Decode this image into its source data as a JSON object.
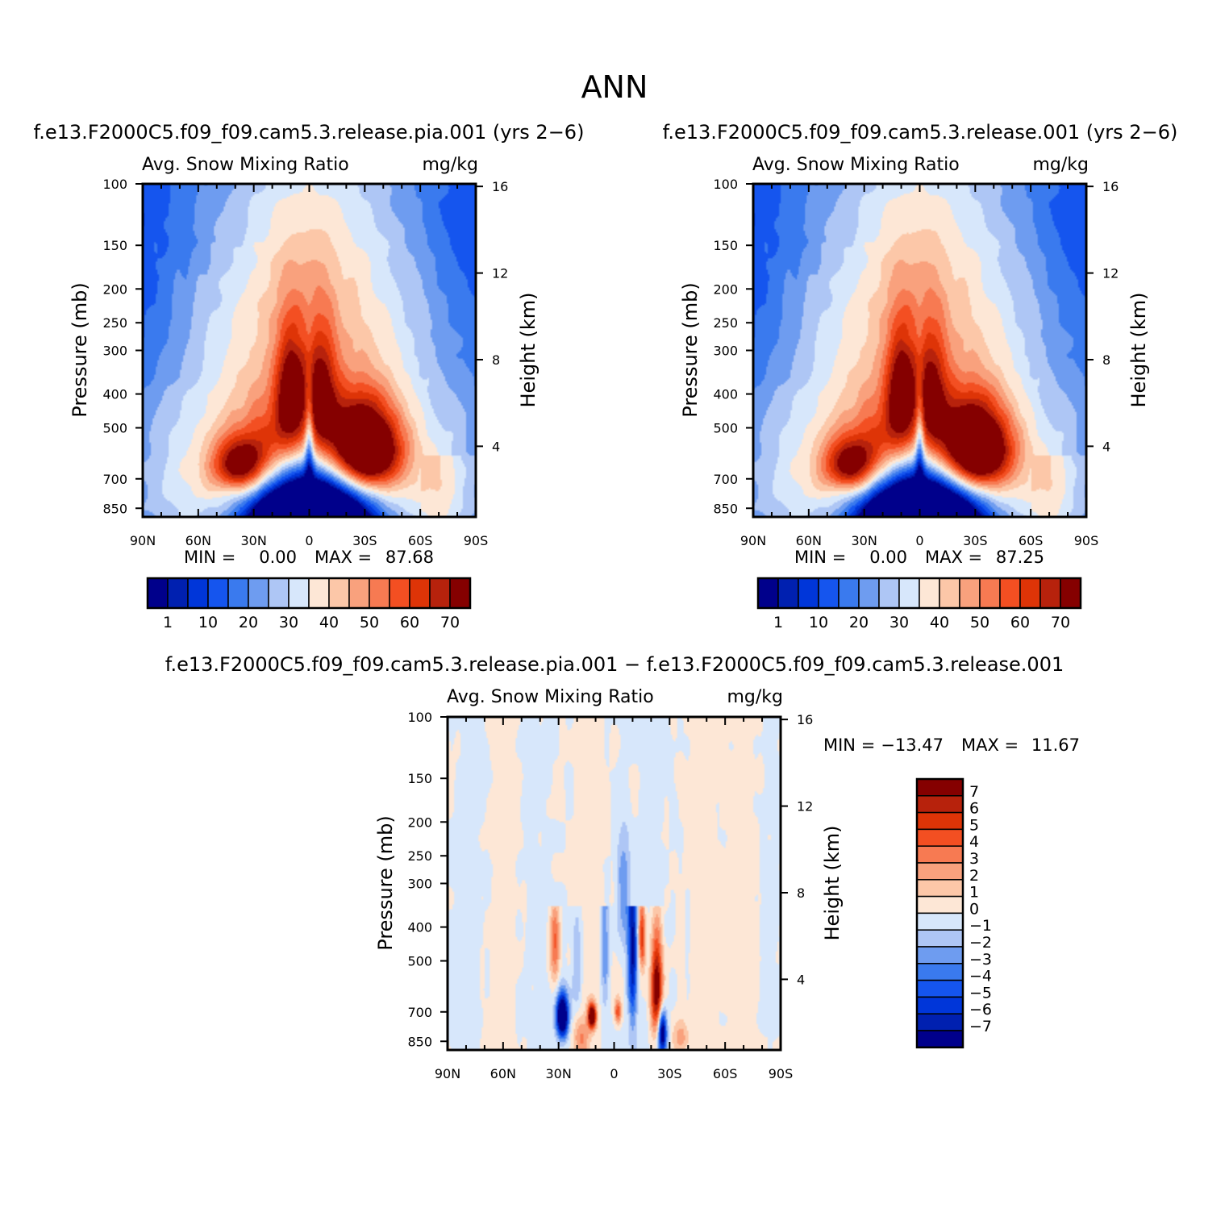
{
  "figure": {
    "title": "ANN"
  },
  "palettes": {
    "abs": [
      "#00008b",
      "#0020b0",
      "#0036d9",
      "#1555ee",
      "#3a7aee",
      "#6e9cf0",
      "#aec6f5",
      "#d7e7fb",
      "#fde7d6",
      "#fcc7a8",
      "#f9a17d",
      "#f77a52",
      "#f34f22",
      "#de3407",
      "#b7220c",
      "#850000"
    ],
    "diff": [
      "#00008b",
      "#0020b0",
      "#0036d9",
      "#1555ee",
      "#3a7aee",
      "#6e9cf0",
      "#aec6f5",
      "#d7e7fb",
      "#fde7d6",
      "#fcc7a8",
      "#f9a17d",
      "#f77a52",
      "#f34f22",
      "#de3407",
      "#b7220c",
      "#850000"
    ]
  },
  "chart_data": [
    {
      "type": "heatmap",
      "title": "f.e13.F2000C5.f09_f09.cam5.3.release.pia.001 (yrs 2−6)",
      "left_label": "Avg. Snow Mixing Ratio",
      "right_label": "mg/kg",
      "xlabel": "",
      "ylabel": "Pressure (mb)",
      "ylabel_right": "Height (km)",
      "x_ticks": [
        "90N",
        "60N",
        "30N",
        "0",
        "30S",
        "60S",
        "90S"
      ],
      "y_ticks": [
        100,
        150,
        200,
        250,
        300,
        400,
        500,
        700,
        850
      ],
      "y_ticks_right": [
        16,
        12,
        8,
        4
      ],
      "min_text": "MIN =",
      "min_value": "0.00",
      "max_text": "MAX =",
      "max_value": "87.68",
      "colorbar_labels": [
        "1",
        "10",
        "20",
        "30",
        "40",
        "50",
        "60",
        "70"
      ],
      "ylim": [
        1000,
        100
      ],
      "xlim": [
        90,
        -90
      ],
      "field": {
        "base_gaussian": [
          {
            "lat": 0,
            "p": 700,
            "sl": 68,
            "sp": 430,
            "amp": 60
          }
        ],
        "blobs": [
          {
            "lat": -32,
            "p": 580,
            "sl": 12,
            "sp": 110,
            "amp": 55
          },
          {
            "lat": 38,
            "p": 640,
            "sl": 10,
            "sp": 80,
            "amp": 40
          },
          {
            "lat": 10,
            "p": 420,
            "sl": 6,
            "sp": 120,
            "amp": 40
          },
          {
            "lat": -6,
            "p": 420,
            "sl": 6,
            "sp": 120,
            "amp": 35
          },
          {
            "lat": -20,
            "p": 540,
            "sl": 12,
            "sp": 120,
            "amp": 20
          },
          {
            "lat": 24,
            "p": 560,
            "sl": 10,
            "sp": 120,
            "amp": 18
          }
        ],
        "holes": [
          {
            "lat": 0,
            "p": 1000,
            "sl": 25,
            "sp": 260,
            "amp": 130
          },
          {
            "lat": 0,
            "p": 540,
            "sl": 1.6,
            "sp": 130,
            "amp": 25
          }
        ],
        "upper_band": {
          "amp": 14,
          "p_center": 180,
          "lat_width": 38
        },
        "max": 87.68
      }
    },
    {
      "type": "heatmap",
      "title": "f.e13.F2000C5.f09_f09.cam5.3.release.001 (yrs 2−6)",
      "left_label": "Avg. Snow Mixing Ratio",
      "right_label": "mg/kg",
      "xlabel": "",
      "ylabel": "Pressure (mb)",
      "ylabel_right": "Height (km)",
      "x_ticks": [
        "90N",
        "60N",
        "30N",
        "0",
        "30S",
        "60S",
        "90S"
      ],
      "y_ticks": [
        100,
        150,
        200,
        250,
        300,
        400,
        500,
        700,
        850
      ],
      "y_ticks_right": [
        16,
        12,
        8,
        4
      ],
      "min_text": "MIN =",
      "min_value": "0.00",
      "max_text": "MAX =",
      "max_value": "87.25",
      "colorbar_labels": [
        "1",
        "10",
        "20",
        "30",
        "40",
        "50",
        "60",
        "70"
      ],
      "ylim": [
        1000,
        100
      ],
      "xlim": [
        90,
        -90
      ],
      "field": {
        "base_gaussian": [
          {
            "lat": 0,
            "p": 700,
            "sl": 68,
            "sp": 430,
            "amp": 60
          }
        ],
        "blobs": [
          {
            "lat": -32,
            "p": 580,
            "sl": 12,
            "sp": 110,
            "amp": 55
          },
          {
            "lat": 38,
            "p": 640,
            "sl": 10,
            "sp": 80,
            "amp": 38
          },
          {
            "lat": 10,
            "p": 420,
            "sl": 6,
            "sp": 120,
            "amp": 40
          },
          {
            "lat": -6,
            "p": 420,
            "sl": 6,
            "sp": 120,
            "amp": 33
          },
          {
            "lat": -20,
            "p": 540,
            "sl": 12,
            "sp": 120,
            "amp": 20
          },
          {
            "lat": 24,
            "p": 560,
            "sl": 10,
            "sp": 120,
            "amp": 18
          }
        ],
        "holes": [
          {
            "lat": 0,
            "p": 1000,
            "sl": 25,
            "sp": 260,
            "amp": 130
          },
          {
            "lat": 0,
            "p": 540,
            "sl": 1.6,
            "sp": 130,
            "amp": 25
          }
        ],
        "upper_band": {
          "amp": 14,
          "p_center": 180,
          "lat_width": 38
        },
        "max": 87.25
      }
    },
    {
      "type": "heatmap",
      "title": "f.e13.F2000C5.f09_f09.cam5.3.release.pia.001 − f.e13.F2000C5.f09_f09.cam5.3.release.001",
      "left_label": "Avg. Snow Mixing Ratio",
      "right_label": "mg/kg",
      "xlabel": "",
      "ylabel": "Pressure (mb)",
      "ylabel_right": "Height (km)",
      "x_ticks": [
        "90N",
        "60N",
        "30N",
        "0",
        "30S",
        "60S",
        "90S"
      ],
      "y_ticks": [
        100,
        150,
        200,
        250,
        300,
        400,
        500,
        700,
        850
      ],
      "y_ticks_right": [
        16,
        12,
        8,
        4
      ],
      "min_text": "MIN =",
      "min_value": "−13.47",
      "max_text": "MAX =",
      "max_value": "11.67",
      "colorbar_labels": [
        "7",
        "6",
        "5",
        "4",
        "3",
        "2",
        "1",
        "0",
        "−1",
        "−2",
        "−3",
        "−4",
        "−5",
        "−6",
        "−7"
      ],
      "ylim": [
        1000,
        100
      ],
      "xlim": [
        90,
        -90
      ],
      "field": {
        "stripes": [
          {
            "lat": 60,
            "sl": 8,
            "amp": 0.6
          },
          {
            "lat": 44,
            "sl": 6,
            "amp": -0.5
          },
          {
            "lat": 12,
            "sl": 6,
            "amp": 0.6
          },
          {
            "lat": -22,
            "sl": 5,
            "amp": -0.5
          },
          {
            "lat": -48,
            "sl": 6,
            "amp": 0.6
          },
          {
            "lat": -70,
            "sl": 8,
            "amp": 0.5
          },
          {
            "lat": 78,
            "sl": 7,
            "amp": -0.4
          },
          {
            "lat": -84,
            "sl": 4,
            "amp": -0.4
          }
        ],
        "cells": [
          {
            "lat": 28,
            "p": 720,
            "sl": 2.2,
            "sp": 70,
            "amp": -12
          },
          {
            "lat": 32,
            "p": 450,
            "sl": 2,
            "sp": 90,
            "amp": 4
          },
          {
            "lat": 12,
            "p": 720,
            "sl": 1.5,
            "sp": 40,
            "amp": 11
          },
          {
            "lat": -10,
            "p": 450,
            "sl": 1.8,
            "sp": 220,
            "amp": -7
          },
          {
            "lat": -15,
            "p": 420,
            "sl": 1.4,
            "sp": 70,
            "amp": 6
          },
          {
            "lat": -23,
            "p": 600,
            "sl": 2.2,
            "sp": 140,
            "amp": 9
          },
          {
            "lat": -26,
            "p": 800,
            "sl": 1.6,
            "sp": 80,
            "amp": -9
          },
          {
            "lat": 5,
            "p": 450,
            "sl": 1.5,
            "sp": 170,
            "amp": -3
          },
          {
            "lat": -2,
            "p": 700,
            "sl": 1.3,
            "sp": 40,
            "amp": 5
          },
          {
            "lat": 20,
            "p": 500,
            "sl": 2,
            "sp": 150,
            "amp": -2
          },
          {
            "lat": -5,
            "p": 330,
            "sl": 2.5,
            "sp": 90,
            "amp": -3
          },
          {
            "lat": 18,
            "p": 830,
            "sl": 3,
            "sp": 80,
            "amp": 3
          },
          {
            "lat": -36,
            "p": 830,
            "sl": 3,
            "sp": 60,
            "amp": 2.5
          }
        ]
      }
    }
  ]
}
